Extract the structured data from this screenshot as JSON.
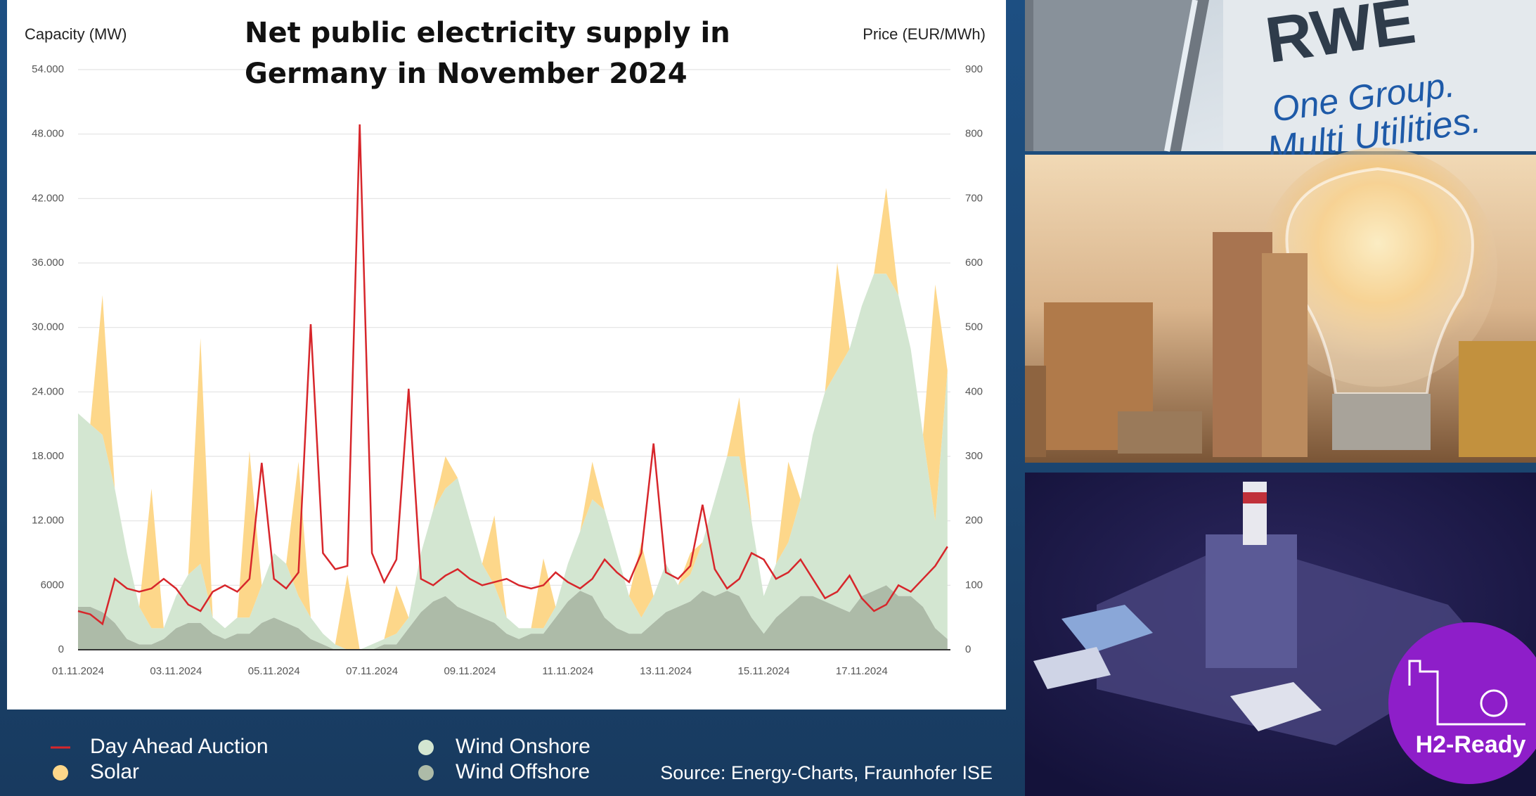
{
  "chart_data": {
    "type": "area",
    "title": "Net public electricity supply in Germany in November 2024",
    "y_label": "Capacity (MW)",
    "y2_label": "Price (EUR/MWh)",
    "categories": [
      "01.11.2024",
      null,
      null,
      null,
      null,
      null,
      null,
      null,
      "03.11.2024",
      null,
      null,
      null,
      null,
      null,
      null,
      null,
      "05.11.2024",
      null,
      null,
      null,
      null,
      null,
      null,
      null,
      "07.11.2024",
      null,
      null,
      null,
      null,
      null,
      null,
      null,
      "09.11.2024",
      null,
      null,
      null,
      null,
      null,
      null,
      null,
      "11.11.2024",
      null,
      null,
      null,
      null,
      null,
      null,
      null,
      "13.11.2024",
      null,
      null,
      null,
      null,
      null,
      null,
      null,
      "15.11.2024",
      null,
      null,
      null,
      null,
      null,
      null,
      null,
      "17.11.2024",
      null,
      null,
      null,
      null,
      null,
      null,
      null
    ],
    "ylim": [
      0,
      54000
    ],
    "yticks": [
      0,
      6000,
      {
        "value": 12000,
        "label": "12.000"
      },
      {
        "value": 18000,
        "label": "18.000"
      },
      {
        "value": 24000,
        "label": "24.000"
      },
      {
        "value": 30000,
        "label": "30.000"
      },
      {
        "value": 36000,
        "label": "36.000"
      },
      {
        "value": 42000,
        "label": "42.000"
      },
      {
        "value": 48000,
        "label": "48.000"
      },
      {
        "value": 54000,
        "label": "54.000"
      }
    ],
    "y2lim": [
      0,
      900
    ],
    "y2ticks": [
      0,
      100,
      200,
      300,
      400,
      500,
      600,
      700,
      800,
      900
    ],
    "grid": true,
    "series": [
      {
        "name": "Day Ahead Auction",
        "type": "line",
        "axis": "y2",
        "color": "#d7262b",
        "values": [
          60,
          55,
          40,
          110,
          95,
          90,
          95,
          110,
          95,
          70,
          60,
          90,
          100,
          90,
          110,
          290,
          110,
          95,
          120,
          505,
          150,
          125,
          130,
          815,
          150,
          105,
          140,
          405,
          110,
          100,
          115,
          125,
          110,
          100,
          105,
          110,
          100,
          95,
          100,
          120,
          105,
          95,
          110,
          140,
          120,
          105,
          150,
          320,
          120,
          110,
          130,
          225,
          125,
          95,
          110,
          150,
          140,
          110,
          120,
          140,
          110,
          80,
          90,
          115,
          80,
          60,
          70,
          100,
          90,
          110,
          130,
          160
        ]
      },
      {
        "name": "Solar",
        "type": "area",
        "color": "#fdd78a",
        "values": [
          0,
          0,
          13000,
          0,
          0,
          0,
          13000,
          0,
          0,
          0,
          21000,
          0,
          0,
          0,
          15500,
          0,
          0,
          0,
          12500,
          0,
          0,
          0,
          7000,
          0,
          0,
          0,
          4500,
          0,
          0,
          0,
          3000,
          0,
          0,
          0,
          6500,
          0,
          0,
          0,
          6500,
          0,
          0,
          0,
          3500,
          0,
          0,
          0,
          7000,
          0,
          0,
          0,
          2000,
          0,
          0,
          0,
          5500,
          0,
          0,
          0,
          7500,
          0,
          0,
          0,
          10000,
          0,
          0,
          0,
          8000,
          0,
          0,
          0,
          22000,
          0
        ]
      },
      {
        "name": "Wind Onshore",
        "type": "area",
        "color": "#d3e6d1",
        "values": [
          18000,
          17000,
          16500,
          12500,
          8000,
          3500,
          1500,
          1000,
          3000,
          4500,
          5500,
          1500,
          1000,
          1500,
          1500,
          3500,
          6000,
          5500,
          3000,
          2000,
          1000,
          500,
          0,
          0,
          500,
          500,
          1000,
          1000,
          5500,
          8500,
          10000,
          12000,
          8500,
          5000,
          3500,
          1500,
          1000,
          500,
          500,
          1000,
          3500,
          5500,
          9000,
          10000,
          7000,
          3500,
          1500,
          2500,
          4500,
          2000,
          2500,
          4500,
          9000,
          12500,
          13000,
          9000,
          3500,
          5000,
          6000,
          9000,
          15000,
          19500,
          22000,
          24500,
          27000,
          29500,
          29000,
          28000,
          23000,
          16000,
          10000,
          25000
        ]
      },
      {
        "name": "Wind Offshore",
        "type": "area",
        "color": "#adbba8",
        "values": [
          4000,
          4000,
          3500,
          2500,
          1000,
          500,
          500,
          1000,
          2000,
          2500,
          2500,
          1500,
          1000,
          1500,
          1500,
          2500,
          3000,
          2500,
          2000,
          1000,
          500,
          0,
          0,
          0,
          0,
          500,
          500,
          2000,
          3500,
          4500,
          5000,
          4000,
          3500,
          3000,
          2500,
          1500,
          1000,
          1500,
          1500,
          3000,
          4500,
          5500,
          5000,
          3000,
          2000,
          1500,
          1500,
          2500,
          3500,
          4000,
          4500,
          5500,
          5000,
          5500,
          5000,
          3000,
          1500,
          3000,
          4000,
          5000,
          5000,
          4500,
          4000,
          3500,
          5000,
          5500,
          6000,
          5000,
          5000,
          4000,
          2000,
          1000
        ]
      }
    ],
    "source": "Source: Energy-Charts, Fraunhofer ISE"
  },
  "images": {
    "rwe_logo": "RWE",
    "rwe_slogan_1": "One Group.",
    "rwe_slogan_2": "Multi Utilities.",
    "plant_badge": "H2-Ready"
  }
}
